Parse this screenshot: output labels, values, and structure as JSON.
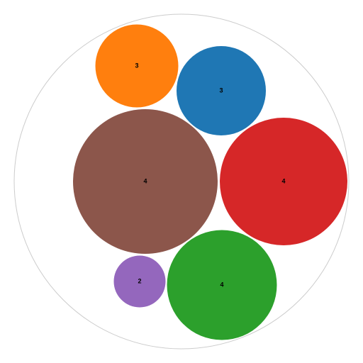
{
  "chart_data": {
    "type": "bubble_pack",
    "title": "",
    "bubbles": [
      {
        "label": "3",
        "value": 3,
        "color": "#ff7f0e"
      },
      {
        "label": "3",
        "value": 3,
        "color": "#1f77b4"
      },
      {
        "label": "4",
        "value": 4,
        "color": "#8c564b"
      },
      {
        "label": "4",
        "value": 4,
        "color": "#d62728"
      },
      {
        "label": "2",
        "value": 2,
        "color": "#9467bd"
      },
      {
        "label": "4",
        "value": 4,
        "color": "#2ca02c"
      }
    ],
    "outline_color": "#cccccc"
  }
}
